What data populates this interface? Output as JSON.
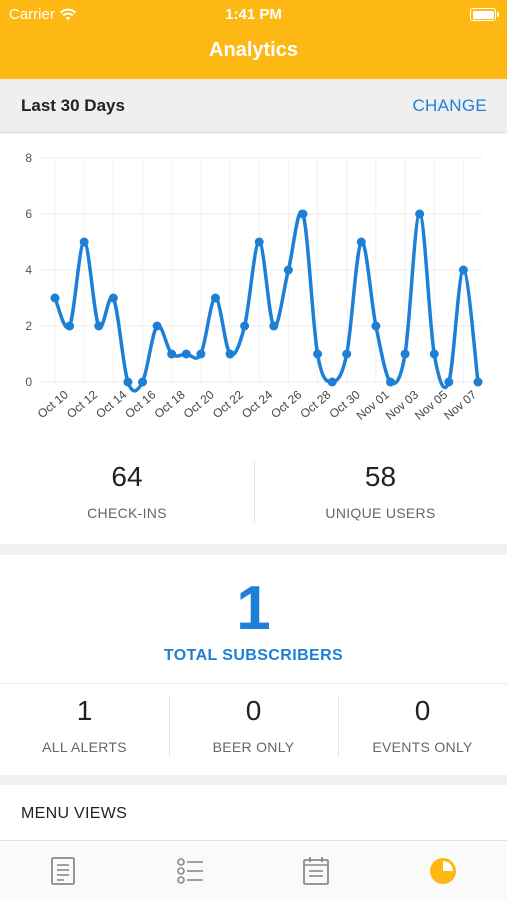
{
  "status_bar": {
    "carrier": "Carrier",
    "time": "1:41 PM"
  },
  "header": {
    "title": "Analytics"
  },
  "range": {
    "label": "Last 30 Days",
    "change_label": "CHANGE"
  },
  "stats": {
    "checkins_value": "64",
    "checkins_label": "CHECK-INS",
    "unique_value": "58",
    "unique_label": "UNIQUE USERS"
  },
  "subscribers": {
    "total_value": "1",
    "total_label": "TOTAL SUBSCRIBERS",
    "breakdown": [
      {
        "value": "1",
        "label": "ALL ALERTS"
      },
      {
        "value": "0",
        "label": "BEER ONLY"
      },
      {
        "value": "0",
        "label": "EVENTS ONLY"
      }
    ]
  },
  "menu_views": {
    "title": "MENU VIEWS"
  },
  "tabs": [
    {
      "icon": "list-document-icon"
    },
    {
      "icon": "checklist-icon"
    },
    {
      "icon": "calendar-icon"
    },
    {
      "icon": "pie-chart-icon"
    }
  ],
  "colors": {
    "accent_yellow": "#fdb813",
    "accent_blue": "#1e7fd6"
  },
  "chart_data": {
    "type": "line",
    "x": [
      "Oct 10",
      "Oct 11",
      "Oct 12",
      "Oct 13",
      "Oct 14",
      "Oct 15",
      "Oct 16",
      "Oct 17",
      "Oct 18",
      "Oct 19",
      "Oct 20",
      "Oct 21",
      "Oct 22",
      "Oct 23",
      "Oct 24",
      "Oct 25",
      "Oct 26",
      "Oct 27",
      "Oct 28",
      "Oct 29",
      "Oct 30",
      "Oct 31",
      "Nov 01",
      "Nov 02",
      "Nov 03",
      "Nov 04",
      "Nov 05",
      "Nov 06",
      "Nov 07",
      "Nov 08"
    ],
    "tick_labels": [
      "Oct 10",
      "Oct 12",
      "Oct 14",
      "Oct 16",
      "Oct 18",
      "Oct 20",
      "Oct 22",
      "Oct 24",
      "Oct 26",
      "Oct 28",
      "Oct 30",
      "Nov 01",
      "Nov 03",
      "Nov 05",
      "Nov 07"
    ],
    "series": [
      {
        "values": [
          3,
          2,
          5,
          2,
          3,
          0,
          0,
          2,
          1,
          1,
          1,
          3,
          1,
          2,
          5,
          2,
          4,
          6,
          1,
          0,
          1,
          5,
          2,
          0,
          1,
          6,
          1,
          0,
          4,
          0
        ]
      }
    ],
    "y_ticks": [
      0,
      2,
      4,
      6,
      8
    ],
    "ylim": [
      0,
      8
    ],
    "grid": true,
    "color": "#1e7fd6"
  }
}
